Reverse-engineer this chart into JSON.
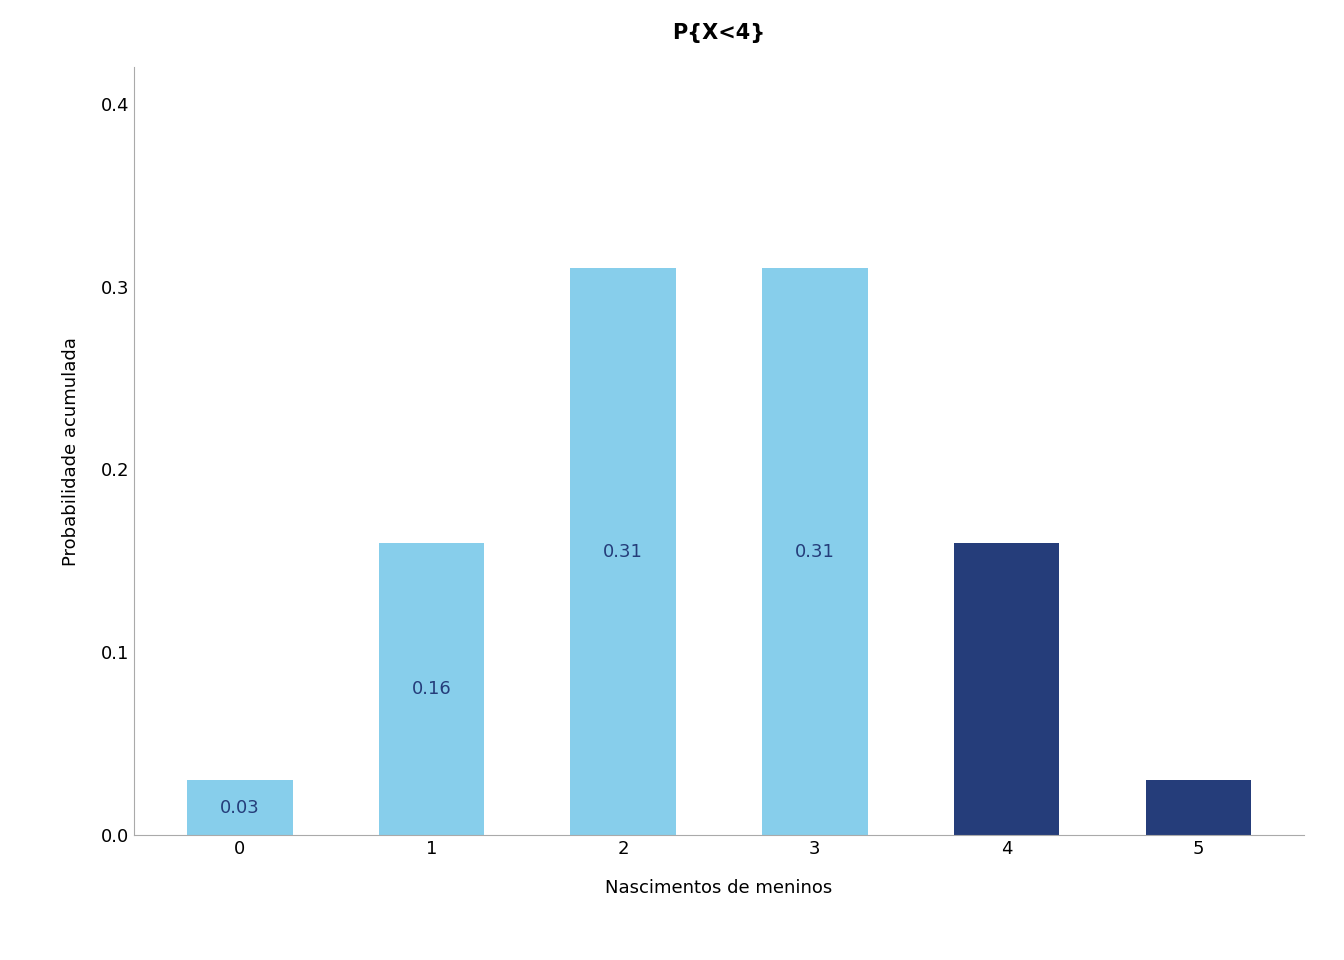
{
  "categories": [
    0,
    1,
    2,
    3,
    4,
    5
  ],
  "values": [
    0.03,
    0.16,
    0.31,
    0.31,
    0.16,
    0.03
  ],
  "bar_colors": [
    "#87CEEB",
    "#87CEEB",
    "#87CEEB",
    "#87CEEB",
    "#253D7A",
    "#253D7A"
  ],
  "title": "P{X<4}",
  "xlabel": "Nascimentos de meninos",
  "ylabel": "Probabilidade acumulada",
  "ylim": [
    0,
    0.42
  ],
  "yticks": [
    0.0,
    0.1,
    0.2,
    0.3,
    0.4
  ],
  "bar_labels": [
    "0.03",
    "0.16",
    "0.31",
    "0.31",
    "",
    ""
  ],
  "title_fontsize": 15,
  "label_fontsize": 13,
  "tick_fontsize": 13,
  "bar_label_fontsize": 13,
  "bar_label_color": "#253D7A",
  "background_color": "#ffffff",
  "bar_width": 0.55
}
